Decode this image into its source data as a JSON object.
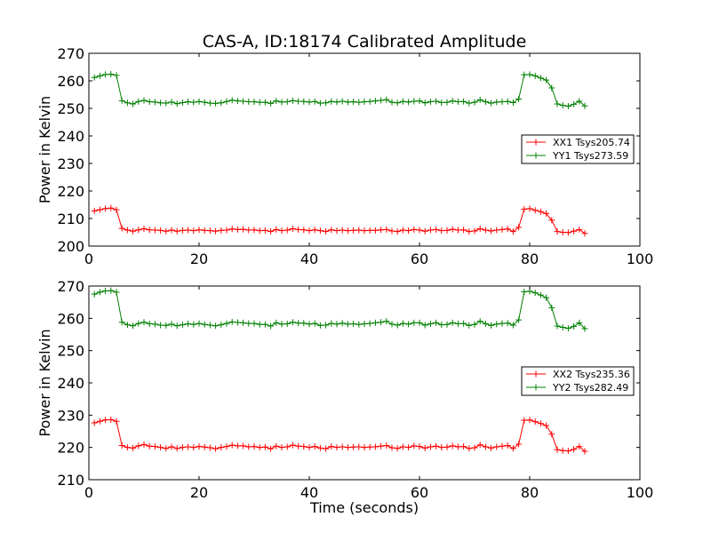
{
  "chart_data": [
    {
      "type": "line",
      "title": "CAS-A, ID:18174 Calibrated Amplitude",
      "xlabel": "",
      "ylabel": "Power in Kelvin",
      "xlim": [
        0,
        100
      ],
      "ylim": [
        200,
        270
      ],
      "xticks": [
        "0",
        "20",
        "40",
        "60",
        "80",
        "100"
      ],
      "yticks": [
        "200",
        "210",
        "220",
        "230",
        "240",
        "250",
        "260",
        "270"
      ],
      "grid": false,
      "legend_position": "center-right",
      "x": [
        1,
        2,
        3,
        4,
        5,
        6,
        7,
        8,
        9,
        10,
        11,
        12,
        13,
        14,
        15,
        16,
        17,
        18,
        19,
        20,
        21,
        22,
        23,
        24,
        25,
        26,
        27,
        28,
        29,
        30,
        31,
        32,
        33,
        34,
        35,
        36,
        37,
        38,
        39,
        40,
        41,
        42,
        43,
        44,
        45,
        46,
        47,
        48,
        49,
        50,
        51,
        52,
        53,
        54,
        55,
        56,
        57,
        58,
        59,
        60,
        61,
        62,
        63,
        64,
        65,
        66,
        67,
        68,
        69,
        70,
        71,
        72,
        73,
        74,
        75,
        76,
        77,
        78,
        79,
        80,
        81,
        82,
        83,
        84,
        85,
        86,
        87,
        88,
        89,
        90
      ],
      "series": [
        {
          "name": "XX1 Tsys205.74",
          "color": "#ff0000",
          "values": [
            212.8,
            213.2,
            213.6,
            213.8,
            213.2,
            206.4,
            205.8,
            205.4,
            205.9,
            206.3,
            205.9,
            205.8,
            205.7,
            205.4,
            205.8,
            205.4,
            205.7,
            205.8,
            205.6,
            205.9,
            205.7,
            205.6,
            205.4,
            205.7,
            205.8,
            206.2,
            206.0,
            206.1,
            205.8,
            205.9,
            205.6,
            205.7,
            205.3,
            206.0,
            205.6,
            205.8,
            206.3,
            206.0,
            205.9,
            205.6,
            205.9,
            205.6,
            205.3,
            205.9,
            205.6,
            205.8,
            205.6,
            205.7,
            205.8,
            205.6,
            205.7,
            205.7,
            205.9,
            206.0,
            205.5,
            205.3,
            205.8,
            205.6,
            206.0,
            205.8,
            205.4,
            205.8,
            206.0,
            205.6,
            205.7,
            206.1,
            205.8,
            205.9,
            205.3,
            205.5,
            206.3,
            205.8,
            205.5,
            205.8,
            206.0,
            206.2,
            205.3,
            206.8,
            213.4,
            213.6,
            213.0,
            212.5,
            211.8,
            209.4,
            205.3,
            205.0,
            204.9,
            205.4,
            206.0,
            204.6
          ]
        },
        {
          "name": "YY1 Tsys273.59",
          "color": "#008000",
          "values": [
            261.2,
            261.8,
            262.3,
            262.4,
            262.0,
            252.8,
            252.0,
            251.6,
            252.5,
            252.9,
            252.4,
            252.3,
            252.0,
            251.9,
            252.3,
            251.7,
            252.1,
            252.4,
            252.2,
            252.5,
            252.2,
            251.9,
            251.8,
            252.0,
            252.5,
            253.0,
            252.7,
            252.6,
            252.4,
            252.4,
            252.2,
            252.2,
            251.8,
            252.7,
            252.3,
            252.4,
            252.8,
            252.6,
            252.5,
            252.3,
            252.5,
            251.9,
            252.0,
            252.5,
            252.3,
            252.6,
            252.3,
            252.4,
            252.2,
            252.4,
            252.5,
            252.7,
            252.9,
            253.2,
            252.2,
            252.0,
            252.5,
            252.3,
            252.6,
            252.7,
            252.0,
            252.4,
            252.6,
            252.1,
            252.2,
            252.7,
            252.4,
            252.5,
            251.9,
            252.2,
            253.1,
            252.4,
            251.9,
            252.3,
            252.4,
            252.5,
            252.1,
            253.4,
            262.2,
            262.3,
            261.8,
            261.0,
            260.3,
            257.4,
            251.6,
            251.1,
            250.8,
            251.5,
            252.6,
            250.9
          ]
        }
      ]
    },
    {
      "type": "line",
      "title": "",
      "xlabel": "Time (seconds)",
      "ylabel": "Power in Kelvin",
      "xlim": [
        0,
        100
      ],
      "ylim": [
        210,
        270
      ],
      "xticks": [
        "0",
        "20",
        "40",
        "60",
        "80",
        "100"
      ],
      "yticks": [
        "210",
        "220",
        "230",
        "240",
        "250",
        "260",
        "270"
      ],
      "grid": false,
      "legend_position": "center-right",
      "x": [
        1,
        2,
        3,
        4,
        5,
        6,
        7,
        8,
        9,
        10,
        11,
        12,
        13,
        14,
        15,
        16,
        17,
        18,
        19,
        20,
        21,
        22,
        23,
        24,
        25,
        26,
        27,
        28,
        29,
        30,
        31,
        32,
        33,
        34,
        35,
        36,
        37,
        38,
        39,
        40,
        41,
        42,
        43,
        44,
        45,
        46,
        47,
        48,
        49,
        50,
        51,
        52,
        53,
        54,
        55,
        56,
        57,
        58,
        59,
        60,
        61,
        62,
        63,
        64,
        65,
        66,
        67,
        68,
        69,
        70,
        71,
        72,
        73,
        74,
        75,
        76,
        77,
        78,
        79,
        80,
        81,
        82,
        83,
        84,
        85,
        86,
        87,
        88,
        89,
        90
      ],
      "series": [
        {
          "name": "XX2 Tsys235.36",
          "color": "#ff0000",
          "values": [
            227.6,
            228.1,
            228.5,
            228.6,
            228.1,
            220.6,
            220.0,
            219.8,
            220.5,
            220.9,
            220.4,
            220.3,
            220.0,
            219.7,
            220.2,
            219.7,
            220.0,
            220.2,
            220.0,
            220.3,
            220.1,
            219.9,
            219.6,
            220.0,
            220.3,
            220.7,
            220.5,
            220.5,
            220.2,
            220.3,
            220.0,
            220.1,
            219.6,
            220.4,
            220.0,
            220.2,
            220.7,
            220.4,
            220.3,
            220.0,
            220.3,
            219.8,
            219.6,
            220.3,
            220.0,
            220.2,
            220.0,
            220.1,
            220.2,
            220.0,
            220.1,
            220.2,
            220.4,
            220.6,
            219.9,
            219.7,
            220.2,
            220.0,
            220.5,
            220.3,
            219.8,
            220.2,
            220.4,
            220.0,
            220.1,
            220.5,
            220.2,
            220.3,
            219.7,
            219.9,
            220.8,
            220.2,
            219.8,
            220.2,
            220.4,
            220.6,
            219.7,
            221.0,
            228.4,
            228.5,
            228.0,
            227.4,
            226.8,
            224.1,
            219.3,
            219.0,
            218.9,
            219.4,
            220.3,
            218.8
          ]
        },
        {
          "name": "YY2 Tsys282.49",
          "color": "#008000",
          "values": [
            267.5,
            268.1,
            268.5,
            268.6,
            268.1,
            258.8,
            258.0,
            257.7,
            258.4,
            258.8,
            258.3,
            258.2,
            257.9,
            257.8,
            258.2,
            257.7,
            258.0,
            258.3,
            258.1,
            258.4,
            258.1,
            257.9,
            257.7,
            258.0,
            258.4,
            258.9,
            258.7,
            258.6,
            258.4,
            258.4,
            258.1,
            258.1,
            257.6,
            258.6,
            258.2,
            258.3,
            258.8,
            258.5,
            258.5,
            258.2,
            258.4,
            257.8,
            257.9,
            258.4,
            258.2,
            258.5,
            258.2,
            258.3,
            258.1,
            258.3,
            258.4,
            258.6,
            258.8,
            259.1,
            258.2,
            257.9,
            258.4,
            258.2,
            258.6,
            258.6,
            257.9,
            258.3,
            258.6,
            258.0,
            258.1,
            258.6,
            258.3,
            258.4,
            257.8,
            258.1,
            259.1,
            258.3,
            257.8,
            258.2,
            258.4,
            258.5,
            257.9,
            259.5,
            268.2,
            268.4,
            267.9,
            267.2,
            266.4,
            263.3,
            257.6,
            257.2,
            256.9,
            257.5,
            258.6,
            256.8
          ]
        }
      ]
    }
  ]
}
